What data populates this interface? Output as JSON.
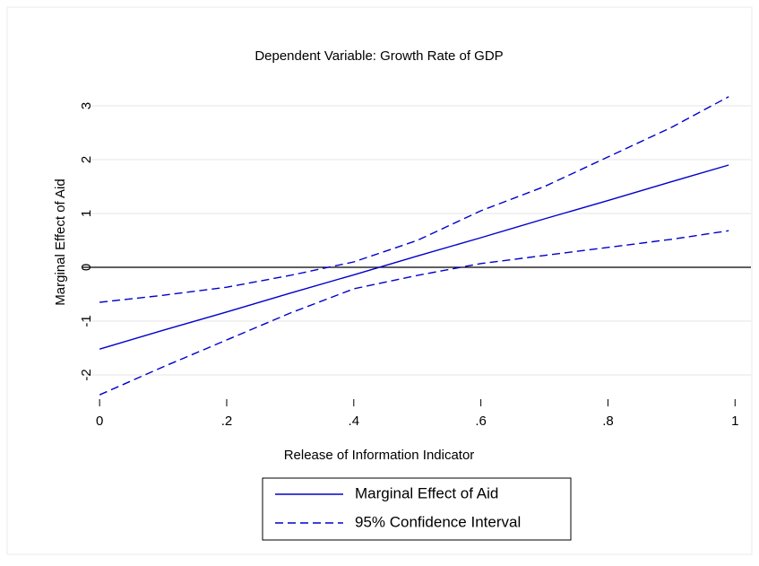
{
  "chart_data": {
    "type": "line",
    "title": "Dependent Variable: Growth Rate of GDP",
    "x_label": "Release of Information Indicator",
    "y_label": "Marginal Effect of Aid",
    "x": [
      0,
      0.1,
      0.2,
      0.3,
      0.4,
      0.5,
      0.6,
      0.7,
      0.8,
      0.9,
      0.99
    ],
    "series": [
      {
        "name": "Marginal Effect of Aid",
        "color": "#0000cc",
        "style": "solid",
        "values": [
          -1.52,
          -1.17,
          -0.83,
          -0.48,
          -0.14,
          0.21,
          0.55,
          0.9,
          1.24,
          1.59,
          1.9
        ]
      },
      {
        "name": "95% Confidence Interval",
        "color": "#0000cc",
        "style": "dashed",
        "upper": [
          -0.65,
          -0.52,
          -0.37,
          -0.15,
          0.1,
          0.5,
          1.05,
          1.5,
          2.05,
          2.6,
          3.17
        ],
        "lower": [
          -2.37,
          -1.85,
          -1.35,
          -0.85,
          -0.4,
          -0.15,
          0.07,
          0.22,
          0.37,
          0.52,
          0.68
        ]
      }
    ],
    "xlim": [
      -0.027,
      1.025
    ],
    "ylim": [
      -2.45,
      3.4
    ],
    "xticks": [
      0,
      {
        "value": 0.2,
        "label": ".2"
      },
      {
        "value": 0.4,
        "label": ".4"
      },
      {
        "value": 0.6,
        "label": ".6"
      },
      {
        "value": 0.8,
        "label": ".8"
      },
      1
    ],
    "yticks": [
      -2,
      -1,
      0,
      1,
      2,
      3
    ],
    "grid": true,
    "yline": 0,
    "legend": "bottom"
  }
}
